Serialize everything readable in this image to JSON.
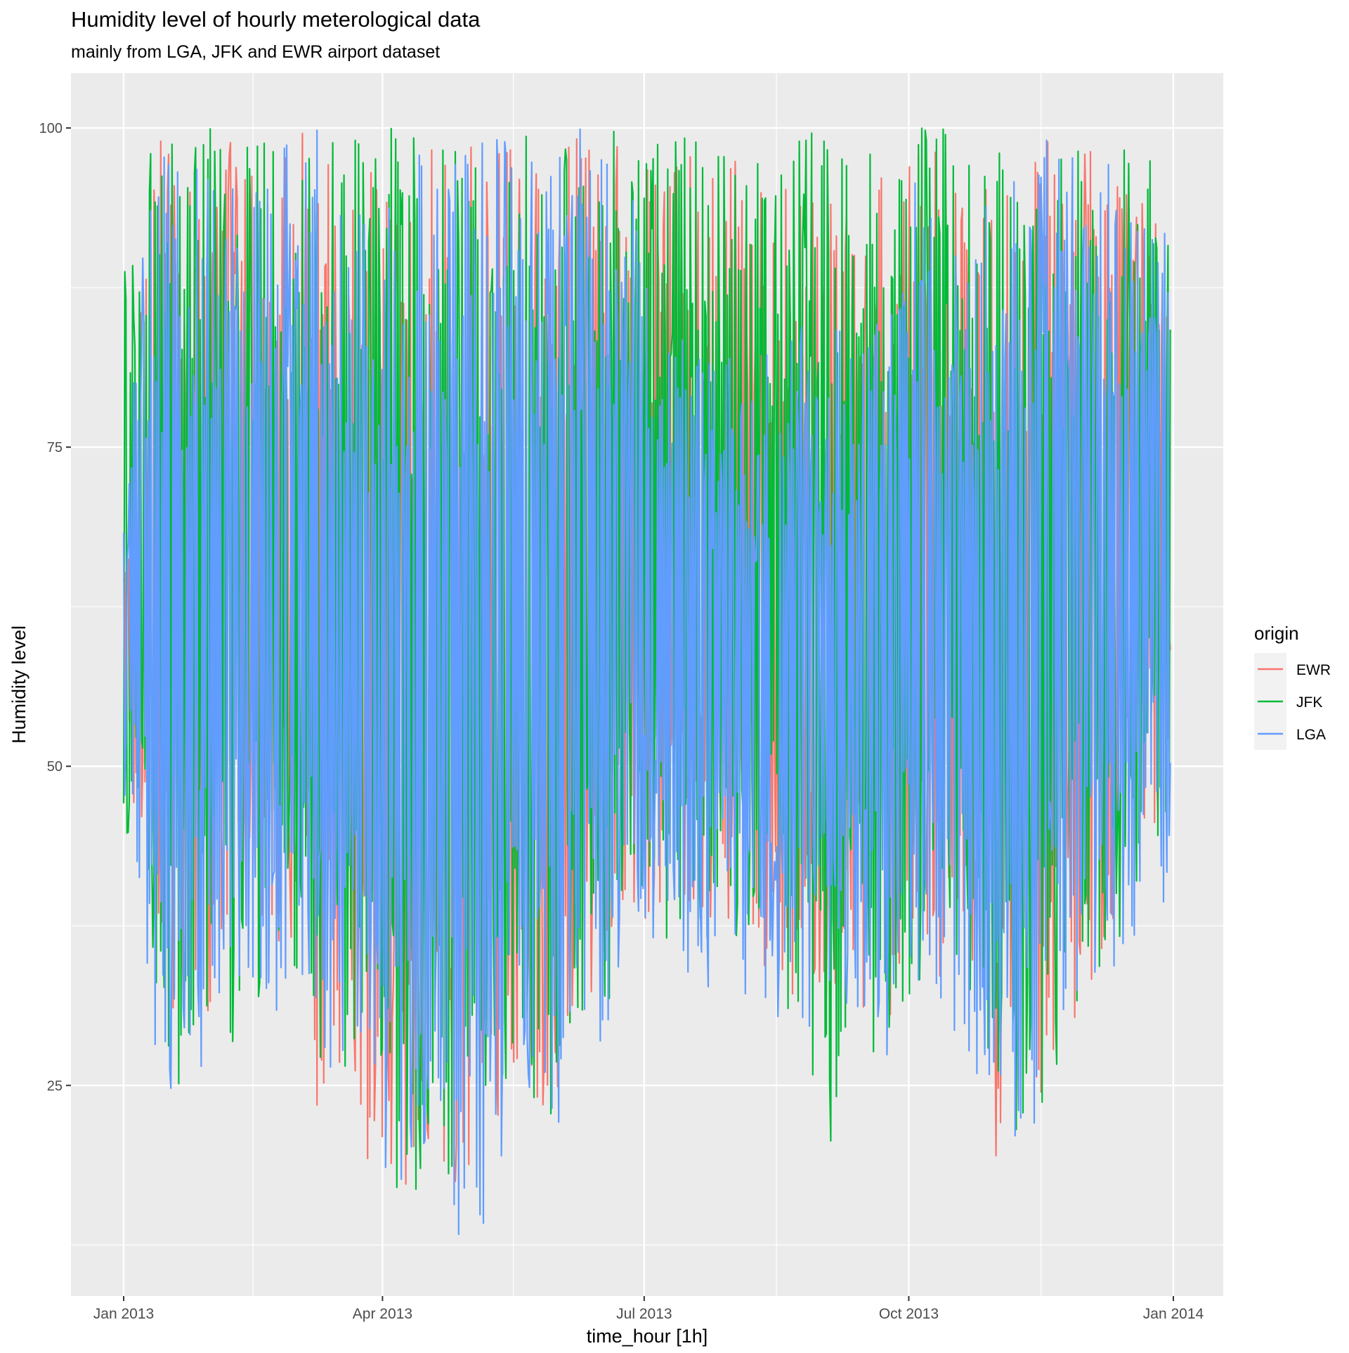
{
  "chart_data": {
    "type": "line",
    "title": "Humidity level of hourly meterological data",
    "subtitle": "mainly from LGA, JFK and EWR airport dataset",
    "xlabel": "time_hour [1h]",
    "ylabel": "Humidity level",
    "x_ticks": [
      "Jan 2013",
      "Apr 2013",
      "Jul 2013",
      "Oct 2013",
      "Jan 2014"
    ],
    "x_tick_dates": [
      "2013-01-01",
      "2013-04-01",
      "2013-07-01",
      "2013-10-01",
      "2014-01-01"
    ],
    "x_range": [
      "2013-01-01",
      "2013-12-31"
    ],
    "y_ticks": [
      25,
      50,
      75,
      100
    ],
    "ylim": [
      8.5,
      104.3
    ],
    "grid": true,
    "legend": {
      "title": "origin",
      "position": "right"
    },
    "series": [
      {
        "name": "EWR",
        "color": "#F8766D",
        "x": [
          "2013-01-01",
          "2013-01-11",
          "2013-01-21",
          "2013-01-31",
          "2013-02-10",
          "2013-02-20",
          "2013-03-02",
          "2013-03-12",
          "2013-03-22",
          "2013-04-01",
          "2013-04-11",
          "2013-04-21",
          "2013-05-01",
          "2013-05-11",
          "2013-05-21",
          "2013-05-31",
          "2013-06-10",
          "2013-06-20",
          "2013-06-30",
          "2013-07-10",
          "2013-07-20",
          "2013-07-30",
          "2013-08-09",
          "2013-08-19",
          "2013-08-29",
          "2013-09-08",
          "2013-09-18",
          "2013-09-28",
          "2013-10-08",
          "2013-10-18",
          "2013-10-28",
          "2013-11-07",
          "2013-11-17",
          "2013-11-27",
          "2013-12-07",
          "2013-12-17",
          "2013-12-27",
          "2013-12-31"
        ],
        "min": [
          54,
          34,
          26,
          30,
          37,
          36,
          35,
          20,
          23,
          16,
          14,
          20,
          16,
          19,
          27,
          21,
          29,
          33,
          39,
          36,
          39,
          37,
          38,
          30,
          32,
          29,
          31,
          29,
          36,
          31,
          28,
          17,
          22,
          27,
          32,
          38,
          44,
          45
        ],
        "max": [
          66,
          100,
          98,
          100,
          100,
          96,
          100,
          99,
          100,
          100,
          97,
          100,
          98,
          100,
          100,
          99,
          100,
          100,
          97,
          97,
          99,
          98,
          97,
          95,
          97,
          96,
          93,
          100,
          100,
          98,
          96,
          95,
          100,
          100,
          100,
          97,
          99,
          96
        ]
      },
      {
        "name": "JFK",
        "color": "#00BA38",
        "x": [
          "2013-01-01",
          "2013-01-11",
          "2013-01-21",
          "2013-01-31",
          "2013-02-10",
          "2013-02-20",
          "2013-03-02",
          "2013-03-12",
          "2013-03-22",
          "2013-04-01",
          "2013-04-11",
          "2013-04-21",
          "2013-05-01",
          "2013-05-11",
          "2013-05-21",
          "2013-05-31",
          "2013-06-10",
          "2013-06-20",
          "2013-06-30",
          "2013-07-10",
          "2013-07-20",
          "2013-07-30",
          "2013-08-09",
          "2013-08-19",
          "2013-08-29",
          "2013-09-08",
          "2013-09-18",
          "2013-09-28",
          "2013-10-08",
          "2013-10-18",
          "2013-10-28",
          "2013-11-07",
          "2013-11-17",
          "2013-11-27",
          "2013-12-07",
          "2013-12-17",
          "2013-12-27",
          "2013-12-31"
        ],
        "min": [
          42,
          31,
          23,
          29,
          23,
          33,
          34,
          22,
          27,
          19,
          15,
          18,
          17,
          20,
          26,
          22,
          26,
          30,
          40,
          33,
          37,
          35,
          33,
          31,
          27,
          20,
          28,
          27,
          32,
          33,
          30,
          23,
          17,
          25,
          33,
          35,
          41,
          43
        ],
        "max": [
          93,
          99,
          100,
          100,
          100,
          100,
          98,
          100,
          99,
          100,
          100,
          98,
          100,
          100,
          100,
          100,
          100,
          100,
          100,
          99,
          100,
          98,
          100,
          99,
          100,
          100,
          98,
          100,
          100,
          100,
          97,
          100,
          96,
          99,
          100,
          100,
          100,
          97
        ]
      },
      {
        "name": "LGA",
        "color": "#619CFF",
        "x": [
          "2013-01-01",
          "2013-01-11",
          "2013-01-21",
          "2013-01-31",
          "2013-02-10",
          "2013-02-20",
          "2013-03-02",
          "2013-03-12",
          "2013-03-22",
          "2013-04-01",
          "2013-04-11",
          "2013-04-21",
          "2013-05-01",
          "2013-05-11",
          "2013-05-21",
          "2013-05-31",
          "2013-06-10",
          "2013-06-20",
          "2013-06-30",
          "2013-07-10",
          "2013-07-20",
          "2013-07-30",
          "2013-08-09",
          "2013-08-19",
          "2013-08-29",
          "2013-09-08",
          "2013-09-18",
          "2013-09-28",
          "2013-10-08",
          "2013-10-18",
          "2013-10-28",
          "2013-11-07",
          "2013-11-17",
          "2013-11-27",
          "2013-12-07",
          "2013-12-17",
          "2013-12-27",
          "2013-12-31"
        ],
        "min": [
          48,
          29,
          16,
          28,
          28,
          31,
          30,
          24,
          27,
          18,
          13,
          19,
          12,
          15,
          25,
          20,
          25,
          29,
          38,
          34,
          32,
          33,
          32,
          27,
          30,
          28,
          31,
          27,
          33,
          29,
          26,
          19,
          21,
          24,
          30,
          34,
          36,
          40
        ],
        "max": [
          70,
          100,
          100,
          100,
          100,
          100,
          99,
          100,
          97,
          93,
          100,
          98,
          100,
          100,
          100,
          100,
          100,
          100,
          96,
          88,
          84,
          83,
          82,
          83,
          85,
          85,
          83,
          86,
          96,
          91,
          92,
          97,
          100,
          100,
          100,
          100,
          93,
          92
        ]
      }
    ]
  }
}
